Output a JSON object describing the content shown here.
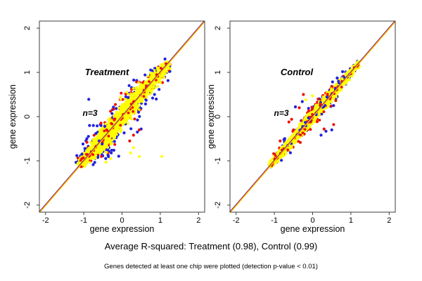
{
  "figure": {
    "background": "#ffffff",
    "captions": {
      "r_squared": "Average R-squared: Treatment (0.98), Control (0.99)",
      "note": "Genes detected at least one chip were plotted (detection p-value < 0.01)"
    },
    "palette": {
      "dense": "#ffff00",
      "fringe_blue": "#2222dd",
      "fringe_red": "#ee1100",
      "line_blue": "#4040c8",
      "line_red": "#e03418",
      "line_yellow": "#ffc800",
      "axis": "#3d3d3d",
      "panel_label": "#808080",
      "text": "#000000"
    }
  },
  "chart_data": [
    {
      "type": "scatter",
      "title": "Treatment",
      "annotation": "n=3",
      "xlabel": "gene expression",
      "ylabel": "gene expression",
      "xlim": [
        -2.16,
        2.16
      ],
      "ylim": [
        -2.16,
        2.16
      ],
      "xticks": [
        -2,
        -1,
        0,
        1,
        2
      ],
      "yticks": [
        -2,
        -1,
        0,
        1,
        2
      ],
      "grid": false,
      "r_squared_avg": 0.98,
      "identity_line": {
        "x": [
          -2.16,
          2.16
        ],
        "y": [
          -2.16,
          2.16
        ]
      },
      "cloud": {
        "seed": 42,
        "t_min": -1.12,
        "t_max": 1.22,
        "t_mean": -0.18,
        "t_sd": 0.52,
        "uniform_frac": 0.45,
        "env_center": 0.05,
        "env_span": 1.38,
        "layers": [
          {
            "color": "fringe_blue",
            "n": 270,
            "sigma": 0.15,
            "r": 2.1,
            "bulges": [
              {
                "amp": 0.3,
                "center": -0.55,
                "sd": 0.32,
                "frac": 0.45
              },
              {
                "amp": -0.26,
                "center": 0.45,
                "sd": 0.3,
                "frac": 0.22
              }
            ]
          },
          {
            "color": "fringe_red",
            "n": 180,
            "sigma": 0.12,
            "r": 2.0,
            "bulges": [
              {
                "amp": 0.26,
                "center": -0.5,
                "sd": 0.3,
                "frac": 0.25
              },
              {
                "amp": -0.28,
                "center": 0.3,
                "sd": 0.35,
                "frac": 0.3
              }
            ]
          },
          {
            "color": "dense",
            "n": 1900,
            "sigma": 0.08,
            "r": 1.8,
            "bulges": [
              {
                "amp": 0.18,
                "center": -0.5,
                "sd": 0.3,
                "frac": 0.1
              },
              {
                "amp": -0.2,
                "center": 0.35,
                "sd": 0.3,
                "frac": 0.12
              }
            ]
          },
          {
            "color": "fringe_red",
            "n": 50,
            "sigma": 0.06,
            "r": 1.9,
            "bulges": []
          }
        ]
      },
      "outliers": {
        "fringe_blue": [
          [
            -0.87,
            0.39
          ],
          [
            0.1,
            0.45
          ],
          [
            0.16,
            0.43
          ],
          [
            0.85,
            0.5
          ],
          [
            0.8,
            0.42
          ],
          [
            -0.85,
            -0.2
          ],
          [
            -0.75,
            -0.2
          ],
          [
            -0.65,
            -0.21
          ],
          [
            -0.55,
            -0.2
          ],
          [
            -0.45,
            -0.22
          ],
          [
            -1.02,
            -0.62
          ],
          [
            -0.97,
            -0.72
          ],
          [
            -1.05,
            -0.85
          ],
          [
            -0.92,
            -0.5
          ],
          [
            -0.6,
            -0.55
          ],
          [
            -0.52,
            -0.62
          ],
          [
            0.4,
            -0.35
          ],
          [
            0.5,
            -0.28
          ]
        ],
        "fringe_red": [
          [
            -0.3,
            0.12
          ],
          [
            -0.22,
            0.17
          ],
          [
            0.3,
            -0.42
          ],
          [
            0.45,
            -0.3
          ],
          [
            -0.55,
            -0.15
          ],
          [
            -0.92,
            -0.58
          ],
          [
            0.2,
            -0.55
          ],
          [
            -1.05,
            -0.95
          ]
        ],
        "dense": [
          [
            -0.42,
            -1.03
          ],
          [
            -0.3,
            -0.95
          ],
          [
            0.45,
            -0.9
          ],
          [
            1.04,
            -0.9
          ],
          [
            0.22,
            -0.82
          ],
          [
            0.3,
            -0.7
          ]
        ]
      }
    },
    {
      "type": "scatter",
      "title": "Control",
      "annotation": "n=3",
      "xlabel": "gene expression",
      "ylabel": "gene expression",
      "xlim": [
        -2.16,
        2.16
      ],
      "ylim": [
        -2.16,
        2.16
      ],
      "xticks": [
        -2,
        -1,
        0,
        1,
        2
      ],
      "yticks": [
        -2,
        -1,
        0,
        1,
        2
      ],
      "grid": false,
      "r_squared_avg": 0.99,
      "identity_line": {
        "x": [
          -2.16,
          2.16
        ],
        "y": [
          -2.16,
          2.16
        ]
      },
      "cloud": {
        "seed": 1337,
        "t_min": -1.12,
        "t_max": 1.22,
        "t_mean": -0.15,
        "t_sd": 0.5,
        "uniform_frac": 0.45,
        "env_center": 0.05,
        "env_span": 1.38,
        "layers": [
          {
            "color": "fringe_blue",
            "n": 150,
            "sigma": 0.08,
            "r": 2.1,
            "bulges": [
              {
                "amp": 0.16,
                "center": -0.35,
                "sd": 0.3,
                "frac": 0.15
              },
              {
                "amp": -0.14,
                "center": 0.2,
                "sd": 0.3,
                "frac": 0.12
              }
            ]
          },
          {
            "color": "fringe_red",
            "n": 210,
            "sigma": 0.07,
            "r": 2.0,
            "bulges": [
              {
                "amp": 0.14,
                "center": -0.4,
                "sd": 0.3,
                "frac": 0.2
              },
              {
                "amp": -0.14,
                "center": 0.25,
                "sd": 0.3,
                "frac": 0.2
              }
            ]
          },
          {
            "color": "dense",
            "n": 1900,
            "sigma": 0.048,
            "r": 1.8,
            "bulges": []
          },
          {
            "color": "fringe_red",
            "n": 60,
            "sigma": 0.045,
            "r": 1.9,
            "bulges": []
          },
          {
            "color": "fringe_blue",
            "n": 30,
            "sigma": 0.045,
            "r": 1.9,
            "bulges": []
          }
        ]
      },
      "outliers": {
        "fringe_red": [
          [
            -0.24,
            0.5
          ],
          [
            -0.55,
            -0.06
          ],
          [
            -0.62,
            -0.12
          ],
          [
            -0.5,
            -0.3
          ],
          [
            -0.85,
            -0.55
          ],
          [
            0.3,
            -0.28
          ],
          [
            0.2,
            0.28
          ],
          [
            0.55,
            -0.18
          ],
          [
            -0.35,
            0.2
          ]
        ],
        "fringe_blue": [
          [
            -0.27,
            0.34
          ],
          [
            -0.45,
            0.22
          ],
          [
            0.35,
            -0.33
          ],
          [
            0.22,
            -0.42
          ],
          [
            -0.75,
            -0.52
          ],
          [
            0.55,
            0.25
          ],
          [
            0.5,
            -0.3
          ]
        ],
        "dense": [
          [
            0.0,
            0.47
          ],
          [
            -0.18,
            0.38
          ]
        ]
      }
    }
  ]
}
